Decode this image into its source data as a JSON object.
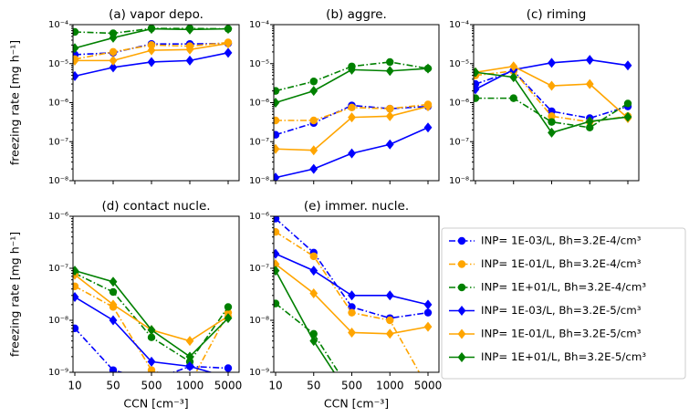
{
  "legend": {
    "entries": [
      {
        "name": "INP= 1E-03/L, Bh=3.2E-4/cm³",
        "color": "#0000ff",
        "marker": "o",
        "linestyle": "-."
      },
      {
        "name": "INP= 1E-01/L, Bh=3.2E-4/cm³",
        "color": "#ffa500",
        "marker": "o",
        "linestyle": "-."
      },
      {
        "name": "INP= 1E+01/L, Bh=3.2E-4/cm³",
        "color": "#008000",
        "marker": "o",
        "linestyle": "-."
      },
      {
        "name": "INP= 1E-03/L, Bh=3.2E-5/cm³",
        "color": "#0000ff",
        "marker": "D",
        "linestyle": "-"
      },
      {
        "name": "INP= 1E-01/L, Bh=3.2E-5/cm³",
        "color": "#ffa500",
        "marker": "D",
        "linestyle": "-"
      },
      {
        "name": "INP= 1E+01/L, Bh=3.2E-5/cm³",
        "color": "#008000",
        "marker": "D",
        "linestyle": "-"
      }
    ]
  },
  "chart_data": [
    {
      "type": "line",
      "title": "(a) vapor depo.",
      "ylabel": "freezing rate [mg h⁻¹]",
      "logy": true,
      "ylim": [
        1e-08,
        0.0001
      ],
      "yticks": [
        {
          "value": 1e-08,
          "label": "10⁻⁸"
        },
        {
          "value": 1e-07,
          "label": "10⁻⁷"
        },
        {
          "value": 1e-06,
          "label": "10⁻⁶"
        },
        {
          "value": 1e-05,
          "label": "10⁻⁵"
        },
        {
          "value": 0.0001,
          "label": "10⁻⁴"
        }
      ],
      "series": [
        {
          "values": [
            1.7e-05,
            1.9e-05,
            3.2e-05,
            3.2e-05,
            3.3e-05
          ]
        },
        {
          "values": [
            1.3e-05,
            2e-05,
            3e-05,
            2.8e-05,
            3.5e-05
          ]
        },
        {
          "values": [
            6.5e-05,
            6e-05,
            8e-05,
            8e-05,
            7.8e-05
          ]
        },
        {
          "values": [
            4.8e-06,
            8e-06,
            1.1e-05,
            1.2e-05,
            1.9e-05
          ]
        },
        {
          "values": [
            1.2e-05,
            1.2e-05,
            2.2e-05,
            2.3e-05,
            3.3e-05
          ]
        },
        {
          "values": [
            2.5e-05,
            4.6e-05,
            7.8e-05,
            7.5e-05,
            7.8e-05
          ]
        }
      ]
    },
    {
      "type": "line",
      "title": "(b) aggre.",
      "logy": true,
      "ylim": [
        1e-08,
        0.0001
      ],
      "yticks": [
        {
          "value": 1e-08,
          "label": "10⁻⁸"
        },
        {
          "value": 1e-07,
          "label": "10⁻⁷"
        },
        {
          "value": 1e-06,
          "label": "10⁻⁶"
        },
        {
          "value": 1e-05,
          "label": "10⁻⁵"
        },
        {
          "value": 0.0001,
          "label": "10⁻⁴"
        }
      ],
      "series": [
        {
          "values": [
            1.5e-07,
            3e-07,
            8.5e-07,
            7e-07,
            8e-07
          ]
        },
        {
          "values": [
            3.5e-07,
            3.5e-07,
            7.5e-07,
            7e-07,
            9e-07
          ]
        },
        {
          "values": [
            2e-06,
            3.5e-06,
            8.5e-06,
            1.1e-05,
            7.5e-06
          ]
        },
        {
          "values": [
            1.2e-08,
            2e-08,
            5e-08,
            8.5e-08,
            2.3e-07
          ]
        },
        {
          "values": [
            6.5e-08,
            6e-08,
            4.2e-07,
            4.5e-07,
            8e-07
          ]
        },
        {
          "values": [
            1e-06,
            2e-06,
            7e-06,
            6.5e-06,
            7.5e-06
          ]
        }
      ]
    },
    {
      "type": "line",
      "title": "(c) riming",
      "logy": true,
      "ylim": [
        1e-08,
        0.0001
      ],
      "yticks": [
        {
          "value": 1e-08,
          "label": "10⁻⁸"
        },
        {
          "value": 1e-07,
          "label": "10⁻⁷"
        },
        {
          "value": 1e-06,
          "label": "10⁻⁶"
        },
        {
          "value": 1e-05,
          "label": "10⁻⁵"
        },
        {
          "value": 0.0001,
          "label": "10⁻⁴"
        }
      ],
      "series": [
        {
          "values": [
            3e-06,
            6.5e-06,
            6e-07,
            4e-07,
            8e-07
          ]
        },
        {
          "values": [
            5e-06,
            6.5e-06,
            4.5e-07,
            3.2e-07,
            4.5e-07
          ]
        },
        {
          "values": [
            1.3e-06,
            1.3e-06,
            3.2e-07,
            2.3e-07,
            9.5e-07
          ]
        },
        {
          "values": [
            2.2e-06,
            7e-06,
            1.05e-05,
            1.25e-05,
            9e-06
          ]
        },
        {
          "values": [
            6e-06,
            8.5e-06,
            2.7e-06,
            3e-06,
            4e-07
          ]
        },
        {
          "values": [
            6e-06,
            4.5e-06,
            1.7e-07,
            3.3e-07,
            4.3e-07
          ]
        }
      ]
    },
    {
      "type": "line",
      "title": "(d) contact nucle.",
      "ylabel": "freezing rate [mg h⁻¹]",
      "xlabel": "CCN [cm⁻³]",
      "logy": true,
      "categories": [
        "10",
        "50",
        "500",
        "1000",
        "5000"
      ],
      "ylim": [
        1e-09,
        1e-06
      ],
      "yticks": [
        {
          "value": 1e-09,
          "label": "10⁻⁹"
        },
        {
          "value": 1e-08,
          "label": "10⁻⁸"
        },
        {
          "value": 1e-07,
          "label": "10⁻⁷"
        },
        {
          "value": 1e-06,
          "label": "10⁻⁶"
        }
      ],
      "series": [
        {
          "values": [
            7e-09,
            1.1e-09,
            7e-10,
            1.3e-09,
            1.2e-09
          ]
        },
        {
          "values": [
            4.5e-08,
            1.8e-08,
            1.1e-09,
            6e-10,
            1.4e-08
          ]
        },
        {
          "values": [
            8e-08,
            3.5e-08,
            4.7e-09,
            1.6e-09,
            1.8e-08
          ]
        },
        {
          "values": [
            2.8e-08,
            1e-08,
            1.6e-09,
            1.3e-09,
            8e-10
          ]
        },
        {
          "values": [
            7.5e-08,
            2e-08,
            6.5e-09,
            4e-09,
            1.2e-08
          ]
        },
        {
          "values": [
            9e-08,
            5.5e-08,
            6.5e-09,
            2e-09,
            1.1e-08
          ]
        }
      ]
    },
    {
      "type": "line",
      "title": "(e) immer. nucle.",
      "xlabel": "CCN [cm⁻³]",
      "logy": true,
      "categories": [
        "10",
        "50",
        "500",
        "1000",
        "5000"
      ],
      "ylim": [
        1e-09,
        1e-06
      ],
      "yticks": [
        {
          "value": 1e-09,
          "label": "10⁻⁹"
        },
        {
          "value": 1e-08,
          "label": "10⁻⁸"
        },
        {
          "value": 1e-07,
          "label": "10⁻⁷"
        },
        {
          "value": 1e-06,
          "label": "10⁻⁶"
        }
      ],
      "series": [
        {
          "values": [
            9e-07,
            2e-07,
            1.8e-08,
            1.1e-08,
            1.4e-08
          ]
        },
        {
          "values": [
            5e-07,
            1.7e-07,
            1.4e-08,
            1e-08,
            5e-10
          ]
        },
        {
          "values": [
            2.1e-08,
            5.5e-09,
            4e-10,
            null,
            null
          ]
        },
        {
          "values": [
            1.9e-07,
            9e-08,
            3e-08,
            3e-08,
            2e-08
          ]
        },
        {
          "values": [
            1.2e-07,
            3.3e-08,
            5.8e-09,
            5.5e-09,
            7.5e-09
          ]
        },
        {
          "values": [
            9e-08,
            4e-09,
            3e-10,
            null,
            null
          ]
        }
      ]
    }
  ]
}
